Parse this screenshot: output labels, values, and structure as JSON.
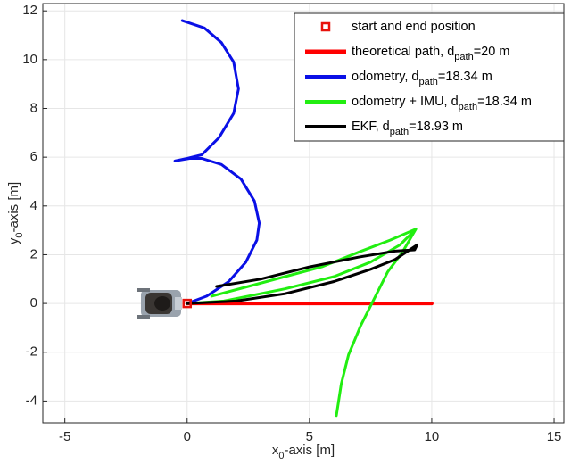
{
  "chart_data": {
    "type": "line",
    "xlabel": [
      "x",
      "0",
      "-axis [m]"
    ],
    "ylabel": [
      "y",
      "0",
      "-axis [m]"
    ],
    "xlim": [
      -5.9,
      15.4
    ],
    "ylim": [
      -4.9,
      12.3
    ],
    "xticks": [
      -5,
      0,
      5,
      10,
      15
    ],
    "yticks": [
      -4,
      -2,
      0,
      2,
      4,
      6,
      8,
      10,
      12
    ],
    "grid": true,
    "legend": "upper right",
    "start_end": {
      "name": "start and end position",
      "x": 0,
      "y": 0,
      "color": "#e8120c"
    },
    "series": [
      {
        "name": [
          "theoretical path, d",
          "path",
          "=20 m"
        ],
        "color": "#ff0000",
        "width": 4,
        "x": [
          0,
          10
        ],
        "y": [
          0,
          0
        ]
      },
      {
        "name": [
          "odometry, d",
          "path",
          "=18.34 m"
        ],
        "color": "#0a10e6",
        "width": 3,
        "x": [
          0,
          0.8,
          1.7,
          2.4,
          2.85,
          2.95,
          2.75,
          2.2,
          1.4,
          0.6,
          0.1,
          -0.5,
          0,
          0.6,
          1.3,
          1.9,
          2.1,
          1.9,
          1.4,
          0.7,
          -0.2
        ],
        "y": [
          0,
          0.3,
          0.9,
          1.7,
          2.6,
          3.3,
          4.2,
          5.1,
          5.7,
          5.95,
          5.95,
          5.85,
          5.95,
          6.1,
          6.8,
          7.8,
          8.8,
          9.9,
          10.7,
          11.3,
          11.6
        ]
      },
      {
        "name": [
          "odometry + IMU, d",
          "path",
          "=18.34 m"
        ],
        "color": "#22ee11",
        "width": 3,
        "x": [
          0,
          1.5,
          4,
          6,
          7.5,
          8.7,
          9.35,
          8.3,
          7,
          5.5,
          4,
          2.5,
          1,
          null,
          9.35,
          8.8,
          8.2,
          7.6,
          7.1,
          6.6,
          6.3,
          6.1
        ],
        "y": [
          0,
          0.1,
          0.6,
          1.1,
          1.7,
          2.4,
          3.05,
          2.6,
          2.1,
          1.5,
          1.1,
          0.7,
          0.3,
          null,
          3.05,
          2.1,
          1.3,
          0.1,
          -0.9,
          -2.1,
          -3.3,
          -4.6
        ]
      },
      {
        "name": [
          "EKF, d",
          "path",
          "=18.93 m"
        ],
        "color": "#000000",
        "width": 3,
        "x": [
          0,
          2,
          4,
          6,
          7.5,
          8.5,
          9.4,
          9.3,
          8.5,
          7,
          5,
          3,
          1.2
        ],
        "y": [
          0,
          0.1,
          0.4,
          0.9,
          1.4,
          1.8,
          2.4,
          2.2,
          2.15,
          1.9,
          1.5,
          1.0,
          0.7
        ]
      }
    ]
  }
}
